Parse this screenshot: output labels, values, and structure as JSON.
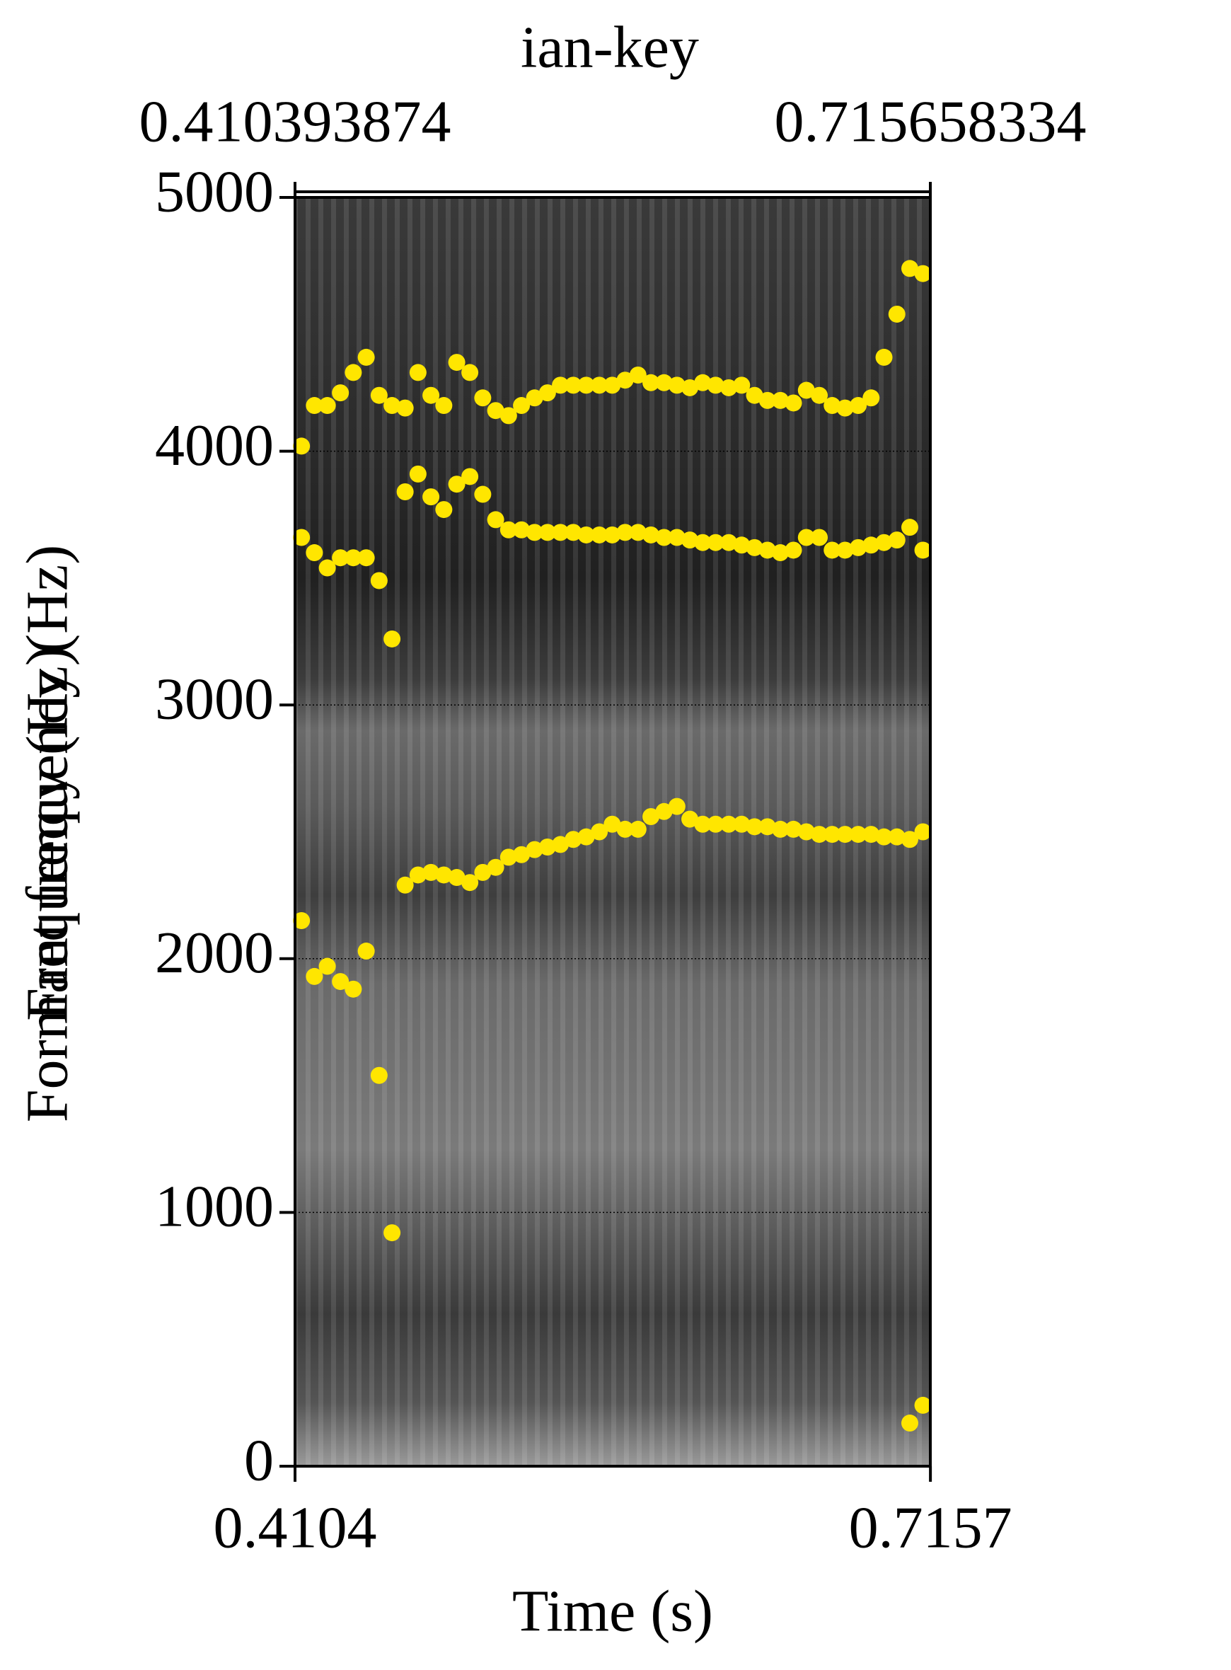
{
  "chart_data": {
    "type": "scatter",
    "title": "ian-key",
    "top_labels": [
      0.410393874,
      0.715658334
    ],
    "x_label": "Time (s)",
    "y_labels": [
      "Formant frequency (Hz)",
      "Frequency (Hz)"
    ],
    "xlim": [
      0.410393874,
      0.715658334
    ],
    "xticks": [
      0.4104,
      0.7157
    ],
    "ylim": [
      0,
      5000
    ],
    "yticks": [
      0,
      1000,
      2000,
      3000,
      4000,
      5000
    ],
    "grid": true,
    "point_color": "#ffe600",
    "x": [
      0.4135,
      0.4197,
      0.4259,
      0.4322,
      0.4384,
      0.4446,
      0.4508,
      0.457,
      0.4633,
      0.4695,
      0.4757,
      0.4819,
      0.4881,
      0.4944,
      0.5006,
      0.5068,
      0.513,
      0.5192,
      0.5255,
      0.5317,
      0.5379,
      0.5441,
      0.5503,
      0.5566,
      0.5628,
      0.569,
      0.5752,
      0.5814,
      0.5877,
      0.5939,
      0.6001,
      0.6063,
      0.6125,
      0.6188,
      0.625,
      0.6312,
      0.6374,
      0.6436,
      0.6499,
      0.6561,
      0.6623,
      0.6685,
      0.6747,
      0.681,
      0.6872,
      0.6934,
      0.6996,
      0.7058,
      0.7121
    ],
    "series": [
      {
        "values": [
          null,
          null,
          null,
          null,
          null,
          null,
          null,
          null,
          null,
          null,
          null,
          null,
          null,
          null,
          null,
          null,
          null,
          null,
          null,
          null,
          null,
          null,
          null,
          null,
          null,
          null,
          null,
          null,
          null,
          null,
          null,
          null,
          null,
          null,
          null,
          null,
          null,
          null,
          null,
          null,
          null,
          null,
          null,
          null,
          null,
          null,
          null,
          170,
          240
        ]
      },
      {
        "values": [
          2150,
          1930,
          1970,
          1910,
          1880,
          2030,
          1540,
          920,
          2290,
          2330,
          2340,
          2330,
          2320,
          2300,
          2340,
          2360,
          2400,
          2410,
          2430,
          2440,
          2450,
          2470,
          2480,
          2500,
          2530,
          2510,
          2510,
          2560,
          2580,
          2600,
          2550,
          2530,
          2530,
          2530,
          2530,
          2520,
          2520,
          2510,
          2510,
          2500,
          2490,
          2490,
          2490,
          2490,
          2490,
          2480,
          2480,
          2470,
          2500
        ]
      },
      {
        "values": [
          3660,
          3600,
          3540,
          3580,
          3580,
          3580,
          3490,
          3260,
          3840,
          3910,
          3820,
          3770,
          3870,
          3900,
          3830,
          3730,
          3690,
          3690,
          3680,
          3680,
          3680,
          3680,
          3670,
          3670,
          3670,
          3680,
          3680,
          3670,
          3660,
          3660,
          3650,
          3640,
          3640,
          3640,
          3630,
          3620,
          3610,
          3600,
          3610,
          3660,
          3660,
          3610,
          3610,
          3620,
          3630,
          3640,
          3650,
          3700,
          3610
        ]
      },
      {
        "values": [
          4020,
          4180,
          4180,
          4230,
          4310,
          4370,
          4220,
          4180,
          4170,
          4310,
          4220,
          4180,
          4350,
          4310,
          4210,
          4160,
          4140,
          4180,
          4210,
          4230,
          4260,
          4260,
          4260,
          4260,
          4260,
          4280,
          4300,
          4270,
          4270,
          4260,
          4250,
          4270,
          4260,
          4250,
          4260,
          4220,
          4200,
          4200,
          4190,
          4240,
          4220,
          4180,
          4170,
          4180,
          4210,
          4370,
          4540,
          4720,
          4700
        ]
      }
    ]
  }
}
